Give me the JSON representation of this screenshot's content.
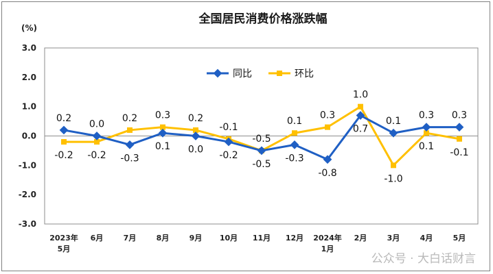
{
  "chart_data": {
    "type": "line",
    "title": "全国居民消费价格涨跌幅",
    "ylabel": "(%)",
    "categories": [
      [
        "2023年",
        "5月"
      ],
      [
        "6月"
      ],
      [
        "7月"
      ],
      [
        "8月"
      ],
      [
        "9月"
      ],
      [
        "10月"
      ],
      [
        "11月"
      ],
      [
        "12月"
      ],
      [
        "2024年",
        "1月"
      ],
      [
        "2月"
      ],
      [
        "3月"
      ],
      [
        "4月"
      ],
      [
        "5月"
      ]
    ],
    "ylim": [
      -3.0,
      3.0
    ],
    "yticks": [
      "3.0",
      "2.0",
      "1.0",
      "0.0",
      "-1.0",
      "-2.0",
      "-3.0"
    ],
    "grid": false,
    "legend": "top-center",
    "series": [
      {
        "name": "同比",
        "color": "#1f5fc4",
        "values": [
          0.2,
          0.0,
          -0.3,
          0.1,
          0.0,
          -0.2,
          -0.5,
          -0.3,
          -0.8,
          0.7,
          0.1,
          0.3,
          0.3
        ],
        "labels": [
          "0.2",
          "0.0",
          "-0.3",
          "0.1",
          "0.0",
          "-0.2",
          "-0.5",
          "-0.3",
          "-0.8",
          "0.7",
          "0.1",
          "0.3",
          "0.3"
        ]
      },
      {
        "name": "环比",
        "color": "#ffc000",
        "values": [
          -0.2,
          -0.2,
          0.2,
          0.3,
          0.2,
          -0.1,
          -0.5,
          0.1,
          0.3,
          1.0,
          -1.0,
          0.1,
          -0.1
        ],
        "labels": [
          "-0.2",
          "-0.2",
          "0.2",
          "0.3",
          "0.2",
          "-0.1",
          "-0.5",
          "0.1",
          "0.3",
          "1.0",
          "-1.0",
          "0.1",
          "-0.1"
        ]
      }
    ]
  },
  "watermark": "公众号 · 大白话财言"
}
